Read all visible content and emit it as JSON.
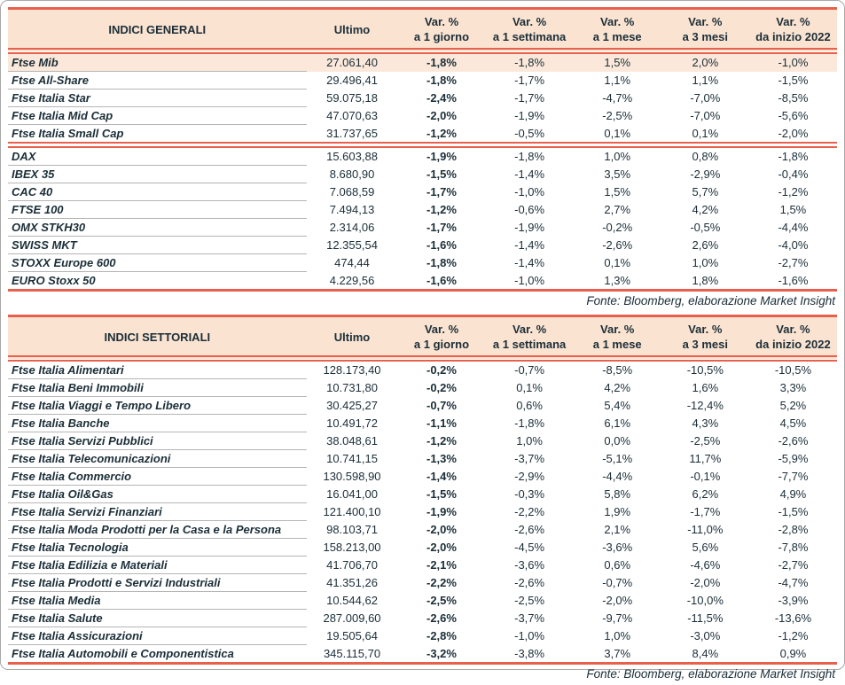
{
  "colors": {
    "accent_red": "#e8604c",
    "header_bg": "#fae3d1",
    "highlight_row_bg": "#fbe8da",
    "text": "#1b2e38",
    "row_divider": "#b5b5b5"
  },
  "header_labels": {
    "ultimo": "Ultimo",
    "var_top": "Var. %",
    "var_subs": [
      "a 1 giorno",
      "a 1 settimana",
      "a 1 mese",
      "a 3 mesi",
      "da inizio 2022"
    ]
  },
  "source_note": "Fonte: Bloomberg, elaborazione Market Insight",
  "tables": [
    {
      "title": "INDICI GENERALI",
      "groups": [
        {
          "rows": [
            {
              "name": "Ftse Mib",
              "ultimo": "27.061,40",
              "vars": [
                "-1,8%",
                "-1,8%",
                "1,5%",
                "2,0%",
                "-1,0%"
              ],
              "highlight": true
            },
            {
              "name": "Ftse All-Share",
              "ultimo": "29.496,41",
              "vars": [
                "-1,8%",
                "-1,7%",
                "1,1%",
                "1,1%",
                "-1,5%"
              ]
            },
            {
              "name": "Ftse Italia Star",
              "ultimo": "59.075,18",
              "vars": [
                "-2,4%",
                "-1,7%",
                "-4,7%",
                "-7,0%",
                "-8,5%"
              ]
            },
            {
              "name": "Ftse Italia Mid Cap",
              "ultimo": "47.070,63",
              "vars": [
                "-2,0%",
                "-1,9%",
                "-2,5%",
                "-7,0%",
                "-5,6%"
              ]
            },
            {
              "name": "Ftse Italia Small Cap",
              "ultimo": "31.737,65",
              "vars": [
                "-1,2%",
                "-0,5%",
                "0,1%",
                "0,1%",
                "-2,0%"
              ]
            }
          ]
        },
        {
          "rows": [
            {
              "name": "DAX",
              "ultimo": "15.603,88",
              "vars": [
                "-1,9%",
                "-1,8%",
                "1,0%",
                "0,8%",
                "-1,8%"
              ]
            },
            {
              "name": "IBEX 35",
              "ultimo": "8.680,90",
              "vars": [
                "-1,5%",
                "-1,4%",
                "3,5%",
                "-2,9%",
                "-0,4%"
              ]
            },
            {
              "name": "CAC 40",
              "ultimo": "7.068,59",
              "vars": [
                "-1,7%",
                "-1,0%",
                "1,5%",
                "5,7%",
                "-1,2%"
              ]
            },
            {
              "name": "FTSE 100",
              "ultimo": "7.494,13",
              "vars": [
                "-1,2%",
                "-0,6%",
                "2,7%",
                "4,2%",
                "1,5%"
              ]
            },
            {
              "name": "OMX STKH30",
              "ultimo": "2.314,06",
              "vars": [
                "-1,7%",
                "-1,9%",
                "-0,2%",
                "-0,5%",
                "-4,4%"
              ]
            },
            {
              "name": "SWISS MKT",
              "ultimo": "12.355,54",
              "vars": [
                "-1,6%",
                "-1,4%",
                "-2,6%",
                "2,6%",
                "-4,0%"
              ]
            },
            {
              "name": "STOXX Europe 600",
              "ultimo": "474,44",
              "vars": [
                "-1,8%",
                "-1,4%",
                "0,1%",
                "1,0%",
                "-2,7%"
              ]
            },
            {
              "name": "EURO Stoxx 50",
              "ultimo": "4.229,56",
              "vars": [
                "-1,6%",
                "-1,0%",
                "1,3%",
                "1,8%",
                "-1,6%"
              ]
            }
          ]
        }
      ]
    },
    {
      "title": "INDICI SETTORIALI",
      "groups": [
        {
          "rows": [
            {
              "name": "Ftse Italia Alimentari",
              "ultimo": "128.173,40",
              "vars": [
                "-0,2%",
                "-0,7%",
                "-8,5%",
                "-10,5%",
                "-10,5%"
              ]
            },
            {
              "name": "Ftse Italia Beni Immobili",
              "ultimo": "10.731,80",
              "vars": [
                "-0,2%",
                "0,1%",
                "4,2%",
                "1,6%",
                "3,3%"
              ]
            },
            {
              "name": "Ftse Italia Viaggi e Tempo Libero",
              "ultimo": "30.425,27",
              "vars": [
                "-0,7%",
                "0,6%",
                "5,4%",
                "-12,4%",
                "5,2%"
              ]
            },
            {
              "name": "Ftse Italia Banche",
              "ultimo": "10.491,72",
              "vars": [
                "-1,1%",
                "-1,8%",
                "6,1%",
                "4,3%",
                "4,5%"
              ]
            },
            {
              "name": "Ftse Italia Servizi Pubblici",
              "ultimo": "38.048,61",
              "vars": [
                "-1,2%",
                "1,0%",
                "0,0%",
                "-2,5%",
                "-2,6%"
              ]
            },
            {
              "name": "Ftse Italia Telecomunicazioni",
              "ultimo": "10.741,15",
              "vars": [
                "-1,3%",
                "-3,7%",
                "-5,1%",
                "11,7%",
                "-5,9%"
              ]
            },
            {
              "name": "Ftse Italia Commercio",
              "ultimo": "130.598,90",
              "vars": [
                "-1,4%",
                "-2,9%",
                "-4,4%",
                "-0,1%",
                "-7,7%"
              ]
            },
            {
              "name": "Ftse Italia Oil&Gas",
              "ultimo": "16.041,00",
              "vars": [
                "-1,5%",
                "-0,3%",
                "5,8%",
                "6,2%",
                "4,9%"
              ]
            },
            {
              "name": "Ftse Italia Servizi Finanziari",
              "ultimo": "121.400,10",
              "vars": [
                "-1,9%",
                "-2,2%",
                "1,9%",
                "-1,7%",
                "-1,5%"
              ]
            },
            {
              "name": "Ftse Italia Moda Prodotti per la Casa e la Persona",
              "ultimo": "98.103,71",
              "vars": [
                "-2,0%",
                "-2,6%",
                "2,1%",
                "-11,0%",
                "-2,8%"
              ]
            },
            {
              "name": "Ftse Italia Tecnologia",
              "ultimo": "158.213,00",
              "vars": [
                "-2,0%",
                "-4,5%",
                "-3,6%",
                "5,6%",
                "-7,8%"
              ]
            },
            {
              "name": "Ftse Italia Edilizia e Materiali",
              "ultimo": "41.706,70",
              "vars": [
                "-2,1%",
                "-3,6%",
                "0,6%",
                "-4,6%",
                "-2,7%"
              ]
            },
            {
              "name": "Ftse Italia Prodotti e Servizi Industriali",
              "ultimo": "41.351,26",
              "vars": [
                "-2,2%",
                "-2,6%",
                "-0,7%",
                "-2,0%",
                "-4,7%"
              ]
            },
            {
              "name": "Ftse Italia Media",
              "ultimo": "10.544,62",
              "vars": [
                "-2,5%",
                "-2,5%",
                "-2,0%",
                "-10,0%",
                "-3,9%"
              ]
            },
            {
              "name": "Ftse Italia Salute",
              "ultimo": "287.009,60",
              "vars": [
                "-2,6%",
                "-3,7%",
                "-9,7%",
                "-11,5%",
                "-13,6%"
              ]
            },
            {
              "name": "Ftse Italia Assicurazioni",
              "ultimo": "19.505,64",
              "vars": [
                "-2,8%",
                "-1,0%",
                "1,0%",
                "-3,0%",
                "-1,2%"
              ]
            },
            {
              "name": "Ftse Italia Automobili e Componentistica",
              "ultimo": "345.115,70",
              "vars": [
                "-3,2%",
                "-3,8%",
                "3,7%",
                "8,4%",
                "0,9%"
              ]
            }
          ]
        }
      ]
    }
  ]
}
